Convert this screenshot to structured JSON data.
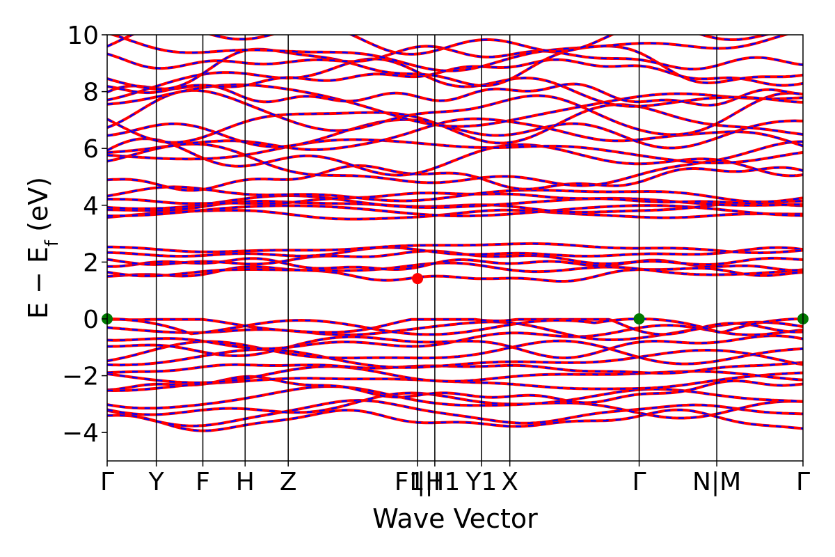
{
  "chart_data": {
    "type": "line",
    "title": "",
    "xlabel": "Wave Vector",
    "ylabel": "E − E_f (eV)",
    "ylabel_main": "E − E",
    "ylabel_sub": "f",
    "ylabel_unit": "(eV)",
    "ylim": [
      -5,
      10
    ],
    "yticks": [
      "−4",
      "−2",
      "0",
      "2",
      "4",
      "6",
      "8",
      "10"
    ],
    "ytick_values": [
      -4,
      -2,
      0,
      2,
      4,
      6,
      8,
      10
    ],
    "kpath_labels": [
      "Γ",
      "Y",
      "F",
      "H",
      "Z",
      "F1|I",
      "I|H1",
      "Y1",
      "X",
      "Γ",
      "N|M",
      "Γ"
    ],
    "kpath_positions": [
      0,
      0.57,
      1.11,
      1.6,
      2.1,
      3.6,
      3.8,
      4.34,
      4.67,
      6.17,
      7.07,
      8.07
    ],
    "grid": false,
    "legend": "none",
    "colors": {
      "spin_up": "#ff0000",
      "spin_down": "#0000ff",
      "vbm_marker": "#007a00",
      "cbm_marker": "#ff0000",
      "axis": "#000000"
    },
    "markers": [
      {
        "name": "VBM",
        "k": 0,
        "energy": 0
      },
      {
        "name": "VBM",
        "k": 6.17,
        "energy": 0
      },
      {
        "name": "VBM",
        "k": 8.07,
        "energy": 0
      },
      {
        "name": "CBM",
        "k": 3.6,
        "energy": 1.42
      }
    ],
    "band_groups": [
      {
        "name": "valence",
        "range": [
          -3.7,
          0
        ],
        "count": 14
      },
      {
        "name": "conduction-1",
        "range": [
          1.45,
          2.6
        ],
        "count": 6
      },
      {
        "name": "conduction-2",
        "range": [
          3.6,
          4.45
        ],
        "count": 6
      },
      {
        "name": "upper",
        "range": [
          4.8,
          10
        ],
        "count": 16
      }
    ]
  }
}
